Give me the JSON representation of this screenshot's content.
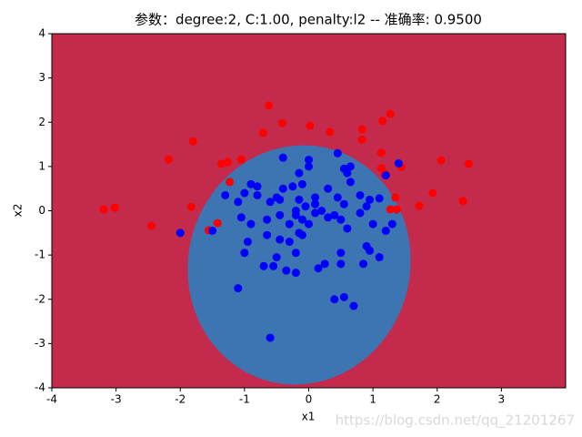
{
  "chart_data": {
    "type": "scatter",
    "title": "参数：degree:2, C:1.00, penalty:l2 -- 准确率: 0.9500",
    "x_label": "x1",
    "y_label": "x2",
    "watermark": "https://blog.csdn.net/qq_21201267",
    "xlim": [
      -4,
      4
    ],
    "ylim": [
      -4,
      4
    ],
    "xticks": [
      -4,
      -3,
      -2,
      -1,
      0,
      1,
      2,
      3
    ],
    "yticks": [
      -4,
      -3,
      -2,
      -1,
      0,
      1,
      2,
      3,
      4
    ],
    "series": [
      {
        "color": "#ff0000",
        "x": [
          -3.19,
          -3.02,
          -2.45,
          -2.18,
          -1.8,
          -1.83,
          -1.42,
          -1.56,
          -1.36,
          -1.26,
          -1.23,
          -1.05,
          -0.62,
          -0.41,
          -0.71,
          0.02,
          0.33,
          0.83,
          0.83,
          1.27,
          1.15,
          1.13,
          1.18,
          1.13,
          1.44,
          1.37,
          1.27,
          1.35,
          1.72,
          1.93,
          2.06,
          2.4,
          2.49
        ],
        "values": [
          0.03,
          0.07,
          -0.34,
          1.16,
          1.57,
          0.09,
          -0.28,
          -0.44,
          1.06,
          1.1,
          0.65,
          1.16,
          2.38,
          1.98,
          1.76,
          1.92,
          1.78,
          1.84,
          1.61,
          2.19,
          2.03,
          1.31,
          0.85,
          0.96,
          0.99,
          0.03,
          0.03,
          0.3,
          0.11,
          0.4,
          1.14,
          0.22,
          1.06
        ]
      },
      {
        "color": "#0000ff",
        "x": [
          -2.0,
          -1.1,
          -0.6,
          0.4,
          0.55,
          0.7,
          0.85,
          1.1,
          0.9,
          0.95,
          1.2,
          1.3,
          1.4,
          1.2,
          1.1,
          0.95,
          0.8,
          0.65,
          0.6,
          0.65,
          0.45,
          0.55,
          0.3,
          0.45,
          0.1,
          0.0,
          0.0,
          -0.15,
          -0.1,
          -0.25,
          -0.4,
          -0.5,
          -0.6,
          -0.8,
          -0.9,
          -0.8,
          -1.0,
          -1.1,
          -1.05,
          -0.9,
          -0.65,
          -0.45,
          -0.3,
          -0.2,
          -0.1,
          0.0,
          -0.05,
          0.1,
          0.2,
          0.3,
          0.4,
          0.5,
          0.6,
          0.8,
          1.0,
          -0.15,
          -0.1,
          -0.3,
          -0.45,
          -0.65,
          -0.95,
          -1.0,
          -0.7,
          -0.5,
          -0.2,
          -0.35,
          -0.2,
          0.15,
          0.25,
          0.5,
          0.5,
          -0.55,
          -0.4,
          -0.45,
          -0.15,
          0.1,
          -0.2,
          0.55,
          0.9,
          -1.3,
          -1.5
        ],
        "values": [
          -0.5,
          -1.75,
          -2.87,
          -2.0,
          -1.95,
          -2.15,
          -1.2,
          -1.05,
          -0.8,
          -0.9,
          -0.45,
          -0.3,
          1.07,
          0.8,
          0.28,
          0.25,
          0.35,
          0.65,
          0.85,
          1.0,
          1.3,
          0.95,
          0.5,
          0.3,
          0.3,
          1.15,
          1.0,
          0.85,
          0.6,
          0.55,
          0.5,
          0.3,
          0.2,
          0.55,
          0.6,
          0.35,
          0.4,
          0.2,
          -0.15,
          -0.3,
          -0.2,
          -0.1,
          -0.3,
          -0.1,
          -0.2,
          -0.3,
          0.1,
          0.15,
          0.0,
          -0.15,
          -0.1,
          -0.2,
          -0.4,
          -0.05,
          -0.3,
          -0.5,
          -0.55,
          -0.7,
          -0.65,
          -0.55,
          -0.7,
          -0.95,
          -1.25,
          -1.05,
          -0.95,
          -1.35,
          -1.4,
          -1.3,
          -1.2,
          -0.95,
          -1.2,
          -1.25,
          1.2,
          0.25,
          0.25,
          -0.05,
          0.0,
          0.15,
          0.1,
          0.35,
          -0.45
        ]
      }
    ]
  }
}
